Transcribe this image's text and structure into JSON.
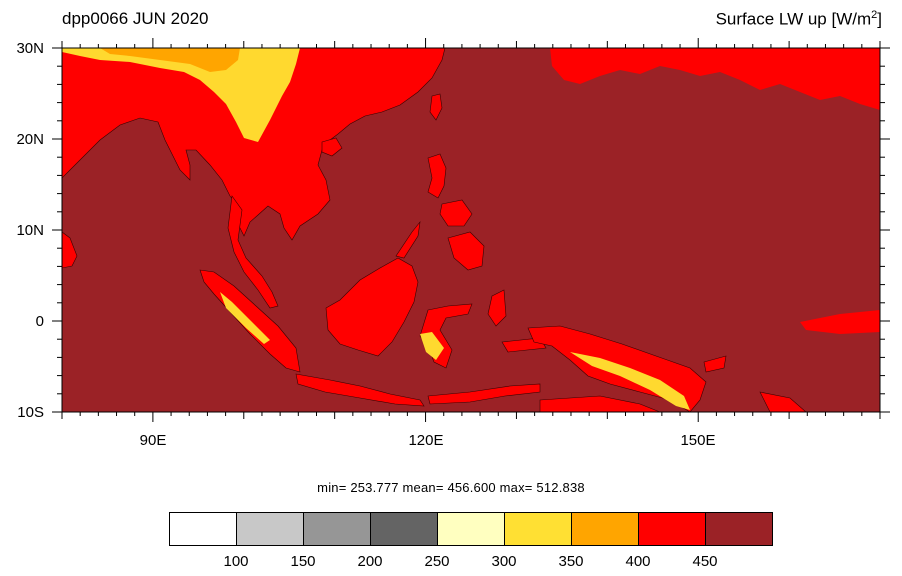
{
  "header": {
    "left_title": "dpp0066 JUN 2020",
    "right_title_main": "Surface LW up [W/m",
    "right_title_sup": "2",
    "right_title_end": "]"
  },
  "map": {
    "lat_range": [
      -10,
      30
    ],
    "lon_range": [
      80,
      170
    ],
    "lat_ticks": [
      "30N",
      "20N",
      "10N",
      "0",
      "10S"
    ],
    "lon_ticks": [
      "90E",
      "120E",
      "150E"
    ],
    "ocean_color": "#9b2226",
    "land_color": "#ff0000",
    "highland_color": "#ffd92f"
  },
  "stats": {
    "text": "min= 253.777  mean= 456.600  max= 512.838"
  },
  "colorbar": {
    "colors": [
      "#ffffff",
      "#c8c8c8",
      "#969696",
      "#646464",
      "#ffffc0",
      "#ffe033",
      "#ffa500",
      "#ff0000",
      "#9b2226"
    ],
    "labels": [
      "100",
      "150",
      "200",
      "250",
      "300",
      "350",
      "400",
      "450"
    ]
  }
}
